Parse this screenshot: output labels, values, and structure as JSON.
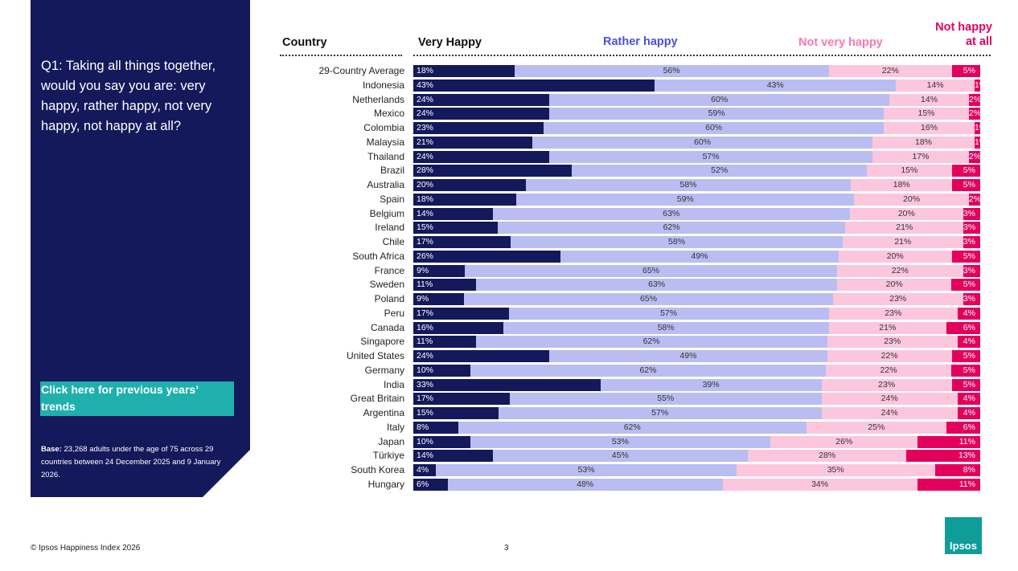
{
  "panel": {
    "question": "Q1: Taking all things together, would you say you are: very happy, rather happy, not very happy, not happy at all?",
    "link": "Click here for previous years’ trends",
    "base_label": "Base:",
    "base_text": " 23,268 adults under the age of 75 across 29 countries between  24 December 2025 and 9 January 2026."
  },
  "footer": {
    "copyright": "© Ipsos Happiness Index 2026",
    "page": "3",
    "logo": "Ipsos"
  },
  "chart_data": {
    "type": "bar",
    "orientation": "horizontal",
    "stacked": true,
    "unit": "%",
    "colors": {
      "Very Happy": "#13195a",
      "Rather happy": "#b9bdf2",
      "Not very happy": "#fcc6dd",
      "Not happy at all": "#e3005d"
    },
    "header": {
      "category": "Country",
      "col0": "Very Happy",
      "col1": "Rather happy",
      "col2": "Not very happy",
      "col3a": "Not happy",
      "col3b": "at all"
    },
    "header_colors": [
      "#111",
      "#4b50d6",
      "#f779b4",
      "#e3005d"
    ],
    "categories": [
      "29-Country Average",
      "Indonesia",
      "Netherlands",
      "Mexico",
      "Colombia",
      "Malaysia",
      "Thailand",
      "Brazil",
      "Australia",
      "Spain",
      "Belgium",
      "Ireland",
      "Chile",
      "South Africa",
      "France",
      "Sweden",
      "Poland",
      "Peru",
      "Canada",
      "Singapore",
      "United States",
      "Germany",
      "India",
      "Great Britain",
      "Argentina",
      "Italy",
      "Japan",
      "Türkiye",
      "South Korea",
      "Hungary"
    ],
    "series": [
      {
        "name": "Very Happy",
        "values": [
          18,
          43,
          24,
          24,
          23,
          21,
          24,
          28,
          20,
          18,
          14,
          15,
          17,
          26,
          9,
          11,
          9,
          17,
          16,
          11,
          24,
          10,
          33,
          17,
          15,
          8,
          10,
          14,
          4,
          6
        ]
      },
      {
        "name": "Rather happy",
        "values": [
          56,
          43,
          60,
          59,
          60,
          60,
          57,
          52,
          58,
          59,
          63,
          62,
          58,
          49,
          65,
          63,
          65,
          57,
          58,
          62,
          49,
          62,
          39,
          55,
          57,
          62,
          53,
          45,
          53,
          48
        ]
      },
      {
        "name": "Not very happy",
        "values": [
          22,
          14,
          14,
          15,
          16,
          18,
          17,
          15,
          18,
          20,
          20,
          21,
          21,
          20,
          22,
          20,
          23,
          23,
          21,
          23,
          22,
          22,
          23,
          24,
          24,
          25,
          26,
          28,
          35,
          34
        ]
      },
      {
        "name": "Not happy at all",
        "values": [
          5,
          1,
          2,
          2,
          1,
          1,
          2,
          5,
          5,
          2,
          3,
          3,
          3,
          5,
          3,
          5,
          3,
          4,
          6,
          4,
          5,
          5,
          5,
          4,
          4,
          6,
          11,
          13,
          8,
          11
        ]
      }
    ]
  }
}
